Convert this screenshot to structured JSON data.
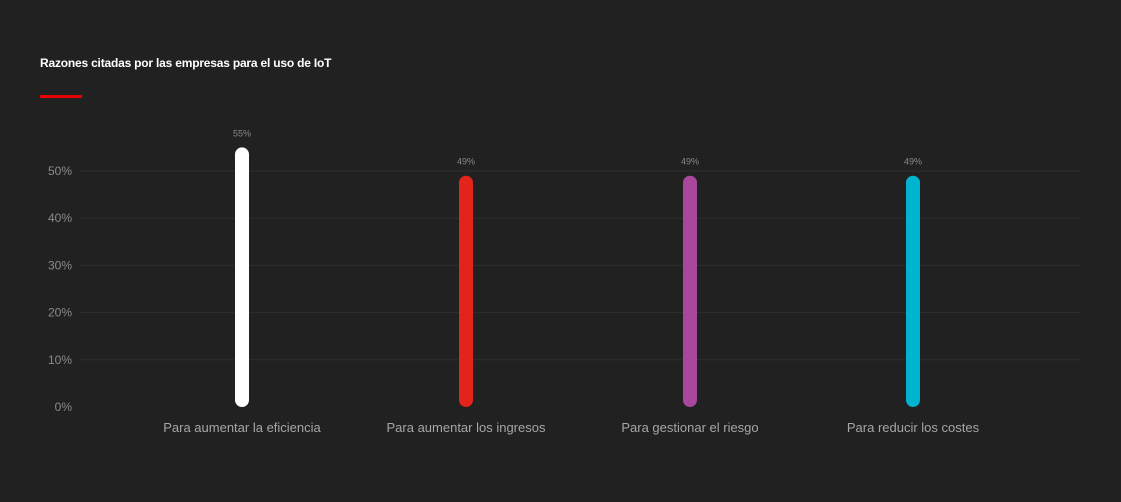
{
  "chart_data": {
    "type": "bar",
    "title": "Razones citadas por las empresas para el uso de IoT",
    "categories": [
      "Para aumentar la eficiencia",
      "Para aumentar los ingresos",
      "Para gestionar el riesgo",
      "Para reducir los costes"
    ],
    "values": [
      55,
      49,
      49,
      49
    ],
    "data_labels": [
      "55%",
      "49%",
      "49%",
      "49%"
    ],
    "bar_colors": [
      "#ffffff",
      "#e3241b",
      "#a8479b",
      "#00b4d0"
    ],
    "ylim": [
      0,
      50
    ],
    "y_ticks": [
      0,
      10,
      20,
      30,
      40,
      50
    ],
    "y_tick_labels": [
      "0%",
      "10%",
      "20%",
      "30%",
      "40%",
      "50%"
    ],
    "grid": true,
    "legend": false,
    "xlabel": "",
    "ylabel": ""
  },
  "colors": {
    "background": "#212121",
    "accent": "#e60000"
  }
}
